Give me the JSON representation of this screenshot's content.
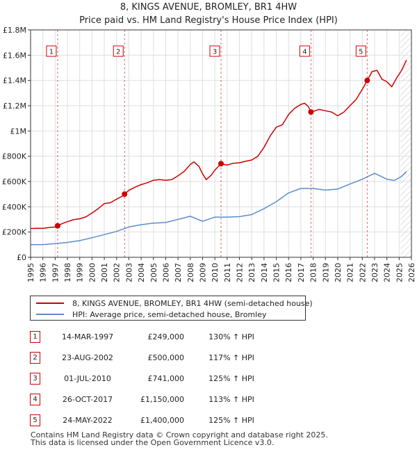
{
  "chart_data": {
    "type": "line",
    "title": "8, KINGS AVENUE, BROMLEY, BR1 4HW",
    "subtitle": "Price paid vs. HM Land Registry's House Price Index (HPI)",
    "xlim": [
      1995,
      2026
    ],
    "ylim": [
      0,
      1800000
    ],
    "y_ticks": [
      {
        "value": 0,
        "label": "£0"
      },
      {
        "value": 200000,
        "label": "£200K"
      },
      {
        "value": 400000,
        "label": "£400K"
      },
      {
        "value": 600000,
        "label": "£600K"
      },
      {
        "value": 800000,
        "label": "£800K"
      },
      {
        "value": 1000000,
        "label": "£1M"
      },
      {
        "value": 1200000,
        "label": "£1.2M"
      },
      {
        "value": 1400000,
        "label": "£1.4M"
      },
      {
        "value": 1600000,
        "label": "£1.6M"
      },
      {
        "value": 1800000,
        "label": "£1.8M"
      }
    ],
    "x_ticks": [
      "1995",
      "1996",
      "1997",
      "1998",
      "1999",
      "2000",
      "2001",
      "2002",
      "2003",
      "2004",
      "2005",
      "2006",
      "2007",
      "2008",
      "2009",
      "2010",
      "2011",
      "2012",
      "2013",
      "2014",
      "2015",
      "2016",
      "2017",
      "2018",
      "2019",
      "2020",
      "2021",
      "2022",
      "2023",
      "2024",
      "2025",
      "2026"
    ],
    "grid": true,
    "hatched_after": 2025.1,
    "series": [
      {
        "name": "8, KINGS AVENUE, BROMLEY, BR1 4HW (semi-detached house)",
        "color": "#cc0000",
        "points": [
          [
            1995.0,
            228000
          ],
          [
            1995.5,
            230000
          ],
          [
            1996.0,
            229000
          ],
          [
            1996.5,
            235000
          ],
          [
            1997.0,
            240000
          ],
          [
            1997.2,
            249000
          ],
          [
            1997.6,
            268000
          ],
          [
            1998.0,
            282000
          ],
          [
            1998.5,
            298000
          ],
          [
            1999.0,
            305000
          ],
          [
            1999.5,
            320000
          ],
          [
            2000.0,
            350000
          ],
          [
            2000.5,
            385000
          ],
          [
            2001.0,
            425000
          ],
          [
            2001.5,
            432000
          ],
          [
            2002.0,
            460000
          ],
          [
            2002.4,
            480000
          ],
          [
            2002.65,
            500000
          ],
          [
            2003.0,
            530000
          ],
          [
            2003.5,
            555000
          ],
          [
            2004.0,
            575000
          ],
          [
            2004.5,
            590000
          ],
          [
            2005.0,
            610000
          ],
          [
            2005.5,
            615000
          ],
          [
            2006.0,
            610000
          ],
          [
            2006.5,
            615000
          ],
          [
            2007.0,
            645000
          ],
          [
            2007.5,
            680000
          ],
          [
            2008.0,
            735000
          ],
          [
            2008.3,
            755000
          ],
          [
            2008.7,
            720000
          ],
          [
            2009.0,
            660000
          ],
          [
            2009.3,
            615000
          ],
          [
            2009.7,
            650000
          ],
          [
            2010.0,
            690000
          ],
          [
            2010.5,
            741000
          ],
          [
            2011.0,
            730000
          ],
          [
            2011.5,
            745000
          ],
          [
            2012.0,
            748000
          ],
          [
            2012.5,
            760000
          ],
          [
            2013.0,
            770000
          ],
          [
            2013.5,
            800000
          ],
          [
            2014.0,
            870000
          ],
          [
            2014.5,
            960000
          ],
          [
            2015.0,
            1030000
          ],
          [
            2015.5,
            1050000
          ],
          [
            2016.0,
            1130000
          ],
          [
            2016.5,
            1180000
          ],
          [
            2017.0,
            1210000
          ],
          [
            2017.3,
            1220000
          ],
          [
            2017.6,
            1195000
          ],
          [
            2017.82,
            1150000
          ],
          [
            2018.0,
            1155000
          ],
          [
            2018.5,
            1170000
          ],
          [
            2019.0,
            1160000
          ],
          [
            2019.5,
            1150000
          ],
          [
            2020.0,
            1120000
          ],
          [
            2020.5,
            1150000
          ],
          [
            2021.0,
            1200000
          ],
          [
            2021.5,
            1250000
          ],
          [
            2022.0,
            1330000
          ],
          [
            2022.4,
            1400000
          ],
          [
            2022.8,
            1470000
          ],
          [
            2023.2,
            1480000
          ],
          [
            2023.6,
            1410000
          ],
          [
            2024.0,
            1390000
          ],
          [
            2024.4,
            1350000
          ],
          [
            2024.8,
            1420000
          ],
          [
            2025.2,
            1480000
          ],
          [
            2025.6,
            1560000
          ]
        ]
      },
      {
        "name": "HPI: Average price, semi-detached house, Bromley",
        "color": "#5b8ccc",
        "points": [
          [
            1995.0,
            100000
          ],
          [
            1996.0,
            101000
          ],
          [
            1997.0,
            108000
          ],
          [
            1998.0,
            118000
          ],
          [
            1999.0,
            132000
          ],
          [
            2000.0,
            155000
          ],
          [
            2001.0,
            180000
          ],
          [
            2002.0,
            205000
          ],
          [
            2003.0,
            240000
          ],
          [
            2004.0,
            258000
          ],
          [
            2005.0,
            270000
          ],
          [
            2006.0,
            275000
          ],
          [
            2007.0,
            300000
          ],
          [
            2008.0,
            325000
          ],
          [
            2009.0,
            285000
          ],
          [
            2010.0,
            318000
          ],
          [
            2011.0,
            318000
          ],
          [
            2012.0,
            322000
          ],
          [
            2013.0,
            338000
          ],
          [
            2014.0,
            385000
          ],
          [
            2015.0,
            440000
          ],
          [
            2016.0,
            510000
          ],
          [
            2017.0,
            545000
          ],
          [
            2018.0,
            545000
          ],
          [
            2019.0,
            532000
          ],
          [
            2020.0,
            540000
          ],
          [
            2021.0,
            580000
          ],
          [
            2022.0,
            618000
          ],
          [
            2023.0,
            665000
          ],
          [
            2024.0,
            618000
          ],
          [
            2024.6,
            608000
          ],
          [
            2025.2,
            640000
          ],
          [
            2025.6,
            680000
          ]
        ]
      }
    ],
    "markers": [
      {
        "label": "1",
        "x": 1997.2,
        "y": 249000
      },
      {
        "label": "2",
        "x": 2002.65,
        "y": 500000
      },
      {
        "label": "3",
        "x": 2010.5,
        "y": 741000
      },
      {
        "label": "4",
        "x": 2017.82,
        "y": 1150000
      },
      {
        "label": "5",
        "x": 2022.4,
        "y": 1400000
      }
    ]
  },
  "legend": {
    "property_label": "8, KINGS AVENUE, BROMLEY, BR1 4HW (semi-detached house)",
    "property_color": "#cc0000",
    "hpi_label": "HPI: Average price, semi-detached house, Bromley",
    "hpi_color": "#5b8ccc"
  },
  "sales": [
    {
      "num": "1",
      "date": "14-MAR-1997",
      "price": "£249,000",
      "hpi": "130% ↑ HPI"
    },
    {
      "num": "2",
      "date": "23-AUG-2002",
      "price": "£500,000",
      "hpi": "117% ↑ HPI"
    },
    {
      "num": "3",
      "date": "01-JUL-2010",
      "price": "£741,000",
      "hpi": "125% ↑ HPI"
    },
    {
      "num": "4",
      "date": "26-OCT-2017",
      "price": "£1,150,000",
      "hpi": "113% ↑ HPI"
    },
    {
      "num": "5",
      "date": "24-MAY-2022",
      "price": "£1,400,000",
      "hpi": "125% ↑ HPI"
    }
  ],
  "footer": {
    "line1": "Contains HM Land Registry data © Crown copyright and database right 2025.",
    "line2": "This data is licensed under the Open Government Licence v3.0."
  }
}
